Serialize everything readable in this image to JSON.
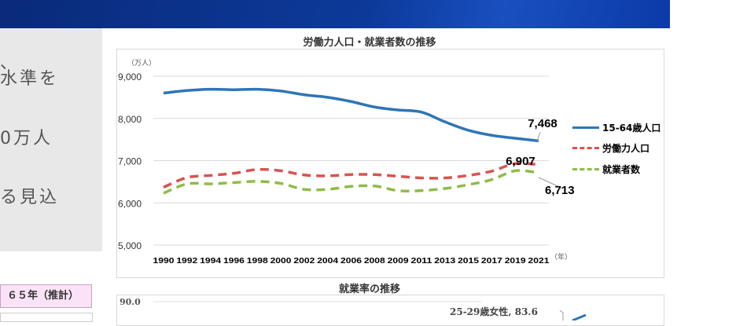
{
  "left_panel": {
    "lines": [
      "、",
      "水準を",
      "0万人",
      "る見込"
    ]
  },
  "table": {
    "header": "６５年（推計）"
  },
  "chart_data": {
    "type": "line",
    "title": "労働力人口・就業者数の推移",
    "ylabel": "（万人）",
    "xlabel": "（年）",
    "ylim": [
      5000,
      9000
    ],
    "yticks": [
      "9,000",
      "8,000",
      "7,000",
      "6,000",
      "5,000"
    ],
    "ytick_values": [
      9000,
      8000,
      7000,
      6000,
      5000
    ],
    "grid": true,
    "legend_position": "right",
    "categories": [
      "1990",
      "1992",
      "1994",
      "1996",
      "1998",
      "2000",
      "2002",
      "2004",
      "2006",
      "2008",
      "2009",
      "2011",
      "2013",
      "2015",
      "2017",
      "2019",
      "2021"
    ],
    "series": [
      {
        "name": "15-64歳人口",
        "color": "#2e75b6",
        "style": "solid",
        "values": [
          8600,
          8660,
          8690,
          8680,
          8690,
          8650,
          8560,
          8500,
          8400,
          8270,
          8200,
          8150,
          7920,
          7720,
          7600,
          7530,
          7468
        ],
        "end_label": "7,468"
      },
      {
        "name": "労働力人口",
        "color": "#d9534f",
        "style": "dashed",
        "values": [
          6370,
          6600,
          6650,
          6700,
          6790,
          6760,
          6660,
          6640,
          6670,
          6670,
          6630,
          6590,
          6590,
          6650,
          6750,
          6930,
          6907
        ],
        "end_label": "6,907"
      },
      {
        "name": "就業者数",
        "color": "#8fbc45",
        "style": "dashed",
        "values": [
          6230,
          6450,
          6450,
          6480,
          6510,
          6460,
          6320,
          6320,
          6390,
          6400,
          6290,
          6290,
          6340,
          6430,
          6550,
          6760,
          6713
        ],
        "end_label": "6,713"
      }
    ]
  },
  "chart2": {
    "title": "就業率の推移",
    "ytick_top": "90.0",
    "annotation": "25-29歳女性, 83.6",
    "annotation_color": "#2e75b6"
  }
}
